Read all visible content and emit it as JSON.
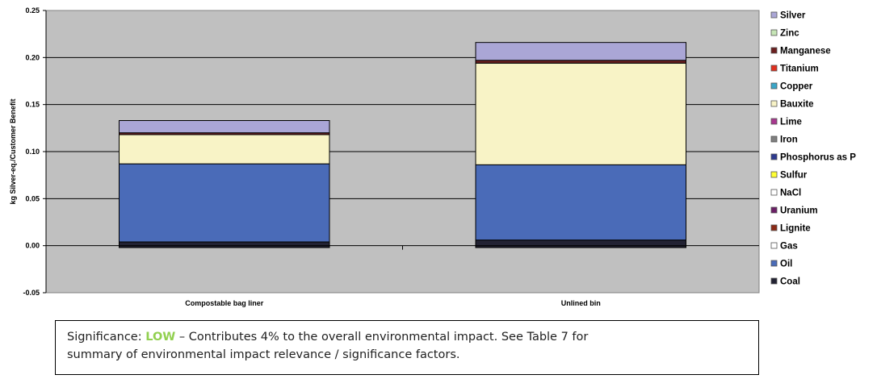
{
  "chart_data": {
    "type": "bar",
    "stacked": true,
    "ylabel": "kg Silver-eq./Customer Benefit",
    "ylim": [
      -0.05,
      0.25
    ],
    "yticks": [
      "0.25",
      "0.20",
      "0.15",
      "0.10",
      "0.05",
      "0.00",
      "-0.05"
    ],
    "ytick_values": [
      0.25,
      0.2,
      0.15,
      0.1,
      0.05,
      0.0,
      -0.05
    ],
    "grid": true,
    "legend_position": "right",
    "categories": [
      "Compostable bag liner",
      "Unlined bin"
    ],
    "series": [
      {
        "name": "Coal",
        "color": "#222233",
        "values": [
          0.004,
          0.006
        ]
      },
      {
        "name": "Oil",
        "color": "#4a6bb8",
        "values": [
          0.083,
          0.08
        ]
      },
      {
        "name": "Gas",
        "color": "#ffffff",
        "values": [
          0.0,
          0.0
        ]
      },
      {
        "name": "Lignite",
        "color": "#8b2a16",
        "values": [
          0.0,
          0.0
        ]
      },
      {
        "name": "Uranium",
        "color": "#6b1f66",
        "values": [
          0.0,
          0.0
        ]
      },
      {
        "name": "NaCl",
        "color": "#ffffff",
        "values": [
          0.0,
          0.0
        ]
      },
      {
        "name": "Sulfur",
        "color": "#ffff33",
        "values": [
          0.0,
          0.0
        ]
      },
      {
        "name": "Phosphorus as P",
        "color": "#2d3a8f",
        "values": [
          0.0,
          0.0
        ]
      },
      {
        "name": "Iron",
        "color": "#7f7f7f",
        "values": [
          0.0,
          0.0
        ]
      },
      {
        "name": "Lime",
        "color": "#a8388f",
        "values": [
          0.0,
          0.0
        ]
      },
      {
        "name": "Bauxite",
        "color": "#f8f3c6",
        "values": [
          0.031,
          0.108
        ]
      },
      {
        "name": "Copper",
        "color": "#3aa6c8",
        "values": [
          0.0,
          0.0
        ]
      },
      {
        "name": "Titanium",
        "color": "#e0301e",
        "values": [
          0.0,
          0.0
        ]
      },
      {
        "name": "Manganese",
        "color": "#6b1f1f",
        "values": [
          0.002,
          0.003
        ]
      },
      {
        "name": "Zinc",
        "color": "#c6e6b6",
        "values": [
          0.0,
          0.0
        ]
      },
      {
        "name": "Silver",
        "color": "#aaa6d6",
        "values": [
          0.013,
          0.019
        ]
      }
    ],
    "negative_values": [
      -0.002,
      -0.002
    ],
    "negative_color": "#222233"
  },
  "note": {
    "prefix": "Significance: ",
    "level": "LOW",
    "rest_line1": " – Contributes 4% to the overall environmental impact.  See Table 7 for",
    "line2": "summary of environmental impact relevance / significance factors."
  }
}
